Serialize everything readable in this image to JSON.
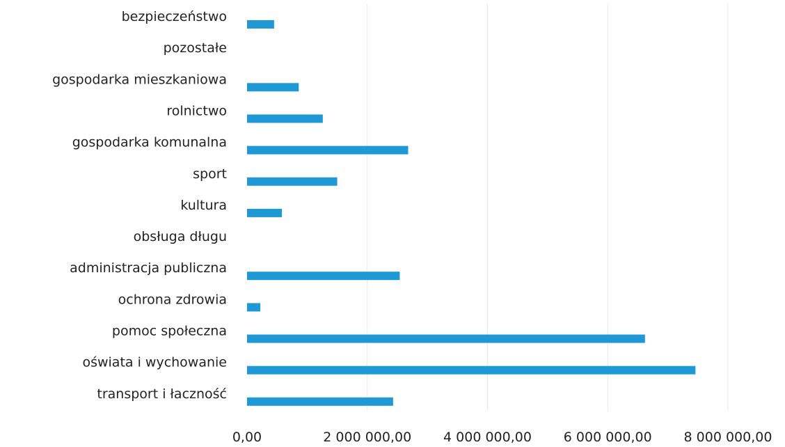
{
  "chart_data": {
    "type": "bar",
    "orientation": "horizontal",
    "title": "",
    "xlabel": "",
    "ylabel": "",
    "categories": [
      "bezpieczeństwo",
      "pozostałe",
      "gospodarka mieszkaniowa",
      "rolnictwo",
      "gospodarka komunalna",
      "sport",
      "kultura",
      "obsługa długu",
      "administracja publiczna",
      "ochrona zdrowia",
      "pomoc społeczna",
      "oświata i wychowanie",
      "transport i łaczność"
    ],
    "values": [
      450000,
      0,
      860000,
      1260000,
      2680000,
      1500000,
      580000,
      0,
      2540000,
      220000,
      6620000,
      7460000,
      2430000
    ],
    "xlim": [
      0,
      8000000
    ],
    "xticks": [
      0,
      2000000,
      4000000,
      6000000,
      8000000
    ],
    "xtick_labels": [
      "0,00",
      "2 000 000,00",
      "4 000 000,00",
      "6 000 000,00",
      "8 000 000,00"
    ],
    "grid": "vertical",
    "legend": "none",
    "bar_color": "#1f98d6"
  }
}
